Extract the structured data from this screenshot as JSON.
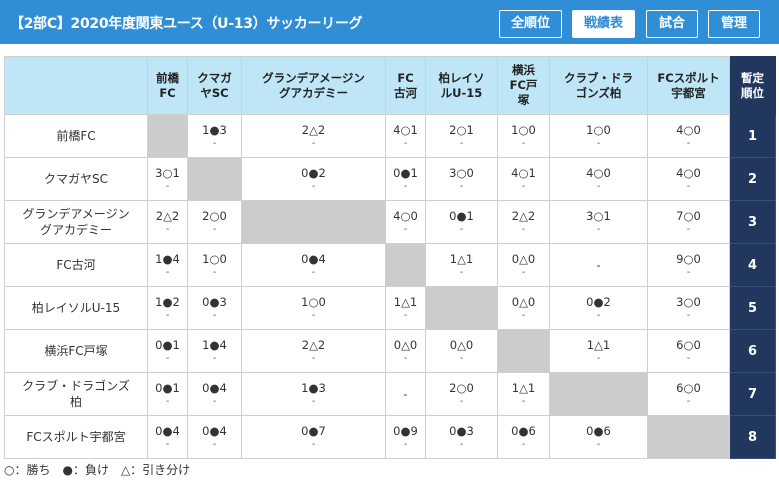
{
  "header": {
    "title": "【2部C】2020年度関東ユース（U-13）サッカーリーグ",
    "tabs": [
      {
        "label": "全順位",
        "active": false
      },
      {
        "label": "戦績表",
        "active": true
      },
      {
        "label": "試合",
        "active": false
      },
      {
        "label": "管理",
        "active": false
      }
    ]
  },
  "columns": [
    "前橋\nFC",
    "クマガ\nヤSC",
    "グランデアメージン\nグアカデミー",
    "FC\n古河",
    "柏レイソ\nルU-15",
    "横浜\nFC戸\n塚",
    "クラブ・ドラ\nゴンズ柏",
    "FCスポルト\n宇都宮"
  ],
  "rank_header": "暫定\n順位",
  "rows": [
    {
      "team": "前橋FC",
      "rank": "1",
      "cells": [
        null,
        "1●3",
        "2△2",
        "4○1",
        "2○1",
        "1○0",
        "1○0",
        "4○0"
      ],
      "subs": [
        null,
        "-",
        "-",
        "-",
        "-",
        "-",
        "-",
        "-"
      ]
    },
    {
      "team": "クマガヤSC",
      "rank": "2",
      "cells": [
        "3○1",
        null,
        "0●2",
        "0●1",
        "3○0",
        "4○1",
        "4○0",
        "4○0"
      ],
      "subs": [
        "-",
        null,
        "-",
        "-",
        "-",
        "-",
        "-",
        "-"
      ]
    },
    {
      "team": "グランデアメージン\nグアカデミー",
      "rank": "3",
      "cells": [
        "2△2",
        "2○0",
        null,
        "4○0",
        "0●1",
        "2△2",
        "3○1",
        "7○0"
      ],
      "subs": [
        "-",
        "-",
        null,
        "-",
        "-",
        "-",
        "-",
        "-"
      ]
    },
    {
      "team": "FC古河",
      "rank": "4",
      "cells": [
        "1●4",
        "1○0",
        "0●4",
        null,
        "1△1",
        "0△0",
        "-",
        "9○0"
      ],
      "subs": [
        "-",
        "-",
        "-",
        null,
        "-",
        "-",
        "",
        "-"
      ]
    },
    {
      "team": "柏レイソルU-15",
      "rank": "5",
      "cells": [
        "1●2",
        "0●3",
        "1○0",
        "1△1",
        null,
        "0△0",
        "0●2",
        "3○0"
      ],
      "subs": [
        "-",
        "-",
        "-",
        "-",
        null,
        "-",
        "-",
        "-"
      ]
    },
    {
      "team": "横浜FC戸塚",
      "rank": "6",
      "cells": [
        "0●1",
        "1●4",
        "2△2",
        "0△0",
        "0△0",
        null,
        "1△1",
        "6○0"
      ],
      "subs": [
        "-",
        "-",
        "-",
        "-",
        "-",
        null,
        "-",
        "-"
      ]
    },
    {
      "team": "クラブ・ドラゴンズ\n柏",
      "rank": "7",
      "cells": [
        "0●1",
        "0●4",
        "1●3",
        "-",
        "2○0",
        "1△1",
        null,
        "6○0"
      ],
      "subs": [
        "-",
        "-",
        "-",
        "",
        "-",
        "-",
        null,
        "-"
      ]
    },
    {
      "team": "FCスポルト宇都宮",
      "rank": "8",
      "cells": [
        "0●4",
        "0●4",
        "0●7",
        "0●9",
        "0●3",
        "0●6",
        "0●6",
        null
      ],
      "subs": [
        "-",
        "-",
        "-",
        "-",
        "-",
        "-",
        "-",
        null
      ]
    }
  ],
  "legend": "○：勝ち　●：負け　△：引き分け"
}
